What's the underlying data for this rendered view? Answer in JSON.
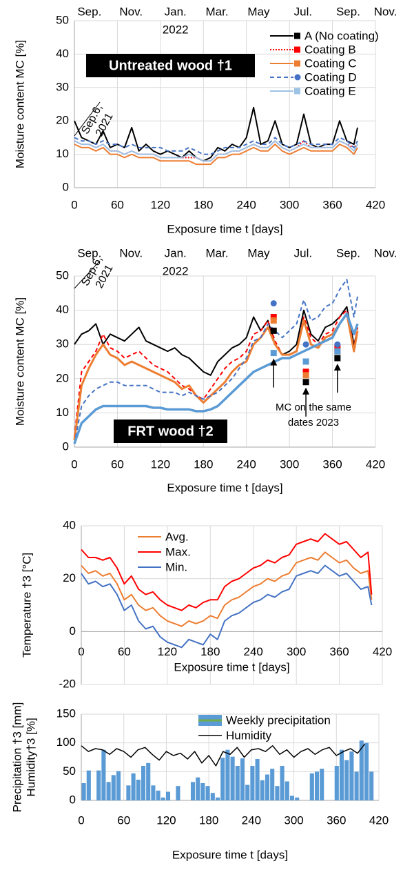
{
  "chart_data": [
    {
      "type": "line",
      "x_label": "Exposure time t [days]",
      "y_label": "Moisture content MC [%]",
      "label": "Untreated wood †1",
      "x2ticks": [
        {
          "value": 21,
          "label": "Sep."
        },
        {
          "value": 79,
          "label": "Nov."
        },
        {
          "value": 141,
          "label": "Jan."
        },
        {
          "value": 199,
          "label": "Mar."
        },
        {
          "value": 257,
          "label": "May"
        },
        {
          "value": 319,
          "label": "Jul."
        },
        {
          "value": 382,
          "label": "Sep."
        },
        {
          "value": 434,
          "label": "Nov."
        }
      ],
      "year_label": "2022",
      "start_note": [
        "Sep.6,",
        "2021"
      ],
      "xlim": [
        0,
        420
      ],
      "xticks": [
        0,
        60,
        120,
        180,
        240,
        300,
        360,
        420
      ],
      "ylim": [
        0,
        50
      ],
      "yticks": [
        0,
        10,
        20,
        30,
        40,
        50
      ],
      "grid": true,
      "x": [
        0,
        10,
        20,
        30,
        40,
        50,
        60,
        70,
        80,
        90,
        100,
        110,
        120,
        130,
        140,
        150,
        160,
        170,
        180,
        190,
        200,
        210,
        220,
        230,
        240,
        250,
        260,
        270,
        280,
        290,
        300,
        310,
        320,
        330,
        340,
        350,
        360,
        370,
        380,
        390,
        395
      ],
      "series": [
        {
          "name": "A (No coating)",
          "color": "#000000",
          "marker": "square",
          "values": [
            20,
            15,
            14,
            13,
            17,
            12,
            13,
            12,
            18,
            11,
            13,
            11,
            10,
            11,
            10,
            9,
            11,
            9,
            8,
            9,
            12,
            11,
            13,
            12,
            15,
            24,
            13,
            14,
            20,
            13,
            12,
            13,
            22,
            13,
            12,
            13,
            13,
            20,
            14,
            13,
            18
          ]
        },
        {
          "name": "Coating B",
          "color": "#ff0000",
          "marker": "square",
          "dash": "dotted",
          "values": [
            14,
            13,
            13,
            12,
            13,
            11,
            11,
            10,
            11,
            10,
            10,
            10,
            9,
            9,
            9,
            9,
            9,
            9,
            8,
            8,
            10,
            10,
            11,
            11,
            12,
            13,
            12,
            12,
            14,
            12,
            11,
            12,
            14,
            12,
            12,
            12,
            12,
            14,
            13,
            12,
            13
          ]
        },
        {
          "name": "Coating C",
          "color": "#ed7d31",
          "marker": "square",
          "values": [
            13,
            12,
            12,
            11,
            12,
            10,
            10,
            9,
            10,
            9,
            9,
            9,
            8,
            8,
            8,
            8,
            8,
            7,
            7,
            7,
            9,
            9,
            10,
            10,
            11,
            12,
            11,
            11,
            13,
            11,
            10,
            11,
            12,
            11,
            11,
            11,
            11,
            13,
            12,
            10,
            12
          ]
        },
        {
          "name": "Coating D",
          "color": "#4472c4",
          "marker": "circle",
          "dash": "dashed",
          "values": [
            15,
            14,
            14,
            13,
            14,
            13,
            13,
            12,
            13,
            12,
            12,
            12,
            12,
            11,
            11,
            11,
            12,
            11,
            10,
            10,
            11,
            12,
            12,
            12,
            13,
            14,
            13,
            13,
            15,
            13,
            12,
            13,
            14,
            13,
            13,
            13,
            13,
            15,
            14,
            12,
            14
          ]
        },
        {
          "name": "Coating E",
          "color": "#9dc3e6",
          "marker": "square",
          "values": [
            14,
            13,
            13,
            12,
            13,
            11,
            11,
            10,
            11,
            10,
            10,
            10,
            9,
            9,
            9,
            9,
            10,
            9,
            8,
            8,
            10,
            10,
            11,
            11,
            12,
            13,
            12,
            12,
            14,
            12,
            11,
            12,
            13,
            12,
            12,
            12,
            12,
            14,
            13,
            11,
            13
          ]
        }
      ]
    },
    {
      "type": "line",
      "x_label": "Exposure time t [days]",
      "y_label": "Moisture content MC [%]",
      "label": "FRT wood †2",
      "x2ticks": [
        {
          "value": 21,
          "label": "Sep."
        },
        {
          "value": 79,
          "label": "Nov."
        },
        {
          "value": 141,
          "label": "Jan."
        },
        {
          "value": 199,
          "label": "Mar."
        },
        {
          "value": 257,
          "label": "May"
        },
        {
          "value": 319,
          "label": "Jul."
        },
        {
          "value": 382,
          "label": "Sep."
        },
        {
          "value": 434,
          "label": "Nov."
        }
      ],
      "year_label": "2022",
      "start_note": [
        "Sep.6,",
        "2021"
      ],
      "note": [
        "MC on the same",
        "dates 2023"
      ],
      "xlim": [
        0,
        420
      ],
      "xticks": [
        0,
        60,
        120,
        180,
        240,
        300,
        360,
        420
      ],
      "ylim": [
        0,
        50
      ],
      "yticks": [
        0,
        10,
        20,
        30,
        40,
        50
      ],
      "grid": true,
      "x": [
        0,
        10,
        20,
        30,
        40,
        50,
        60,
        70,
        80,
        90,
        100,
        110,
        120,
        130,
        140,
        150,
        160,
        170,
        180,
        190,
        200,
        210,
        220,
        230,
        240,
        250,
        260,
        270,
        280,
        290,
        300,
        310,
        320,
        330,
        340,
        350,
        360,
        370,
        380,
        390,
        395
      ],
      "dates_2023_x": [
        278,
        323,
        367
      ],
      "series": [
        {
          "color": "#000000",
          "dates_2023_values": [
            34,
            19,
            26
          ],
          "values": [
            30,
            33,
            34,
            36,
            30,
            33,
            32,
            31,
            33,
            35,
            31,
            30,
            29,
            28,
            29,
            27,
            26,
            24,
            22,
            21,
            25,
            27,
            29,
            30,
            32,
            38,
            34,
            37,
            30,
            27,
            28,
            30,
            40,
            33,
            31,
            35,
            36,
            38,
            41,
            30,
            34
          ]
        },
        {
          "color": "#ff0000",
          "dash": "dashed",
          "dates_2023_values": [
            38,
            22,
            29
          ],
          "values": [
            3,
            22,
            25,
            28,
            33,
            29,
            28,
            26,
            27,
            28,
            26,
            24,
            23,
            22,
            20,
            18,
            17,
            15,
            14,
            17,
            20,
            23,
            25,
            26,
            28,
            33,
            34,
            37,
            31,
            27,
            27,
            28,
            38,
            32,
            30,
            33,
            34,
            38,
            40,
            29,
            35
          ]
        },
        {
          "color": "#ed7d31",
          "width": 3,
          "dates_2023_values": [
            37,
            21,
            28
          ],
          "values": [
            2,
            18,
            23,
            27,
            30,
            27,
            26,
            24,
            25,
            24,
            23,
            22,
            21,
            20,
            19,
            17,
            18,
            15,
            13,
            15,
            17,
            19,
            22,
            24,
            25,
            30,
            32,
            35,
            30,
            27,
            27,
            28,
            37,
            30,
            29,
            32,
            33,
            36,
            39,
            28,
            34
          ]
        },
        {
          "color": "#4472c4",
          "dash": "dashed",
          "marker": "circle",
          "dates_2023_values": [
            42,
            30,
            30
          ],
          "values": [
            1,
            12,
            15,
            17,
            18,
            19,
            19,
            18,
            18,
            18,
            18,
            17,
            16,
            16,
            16,
            15,
            16,
            15,
            14,
            15,
            16,
            18,
            20,
            23,
            26,
            31,
            32,
            36,
            34,
            32,
            34,
            36,
            43,
            37,
            38,
            41,
            42,
            46,
            49,
            38,
            44
          ]
        },
        {
          "color": "#5b9bd5",
          "width": 3.5,
          "dates_2023_values": [
            27.5,
            25,
            28
          ],
          "values": [
            1,
            7,
            9,
            11,
            12,
            12,
            12,
            12,
            12,
            12,
            12,
            11.5,
            11.5,
            11,
            11,
            11,
            11,
            10.5,
            10.5,
            11,
            12,
            14,
            16,
            18,
            20,
            22,
            23,
            24,
            25,
            26,
            26,
            27,
            28,
            29,
            30,
            31,
            32,
            36,
            39,
            33,
            36
          ]
        }
      ]
    },
    {
      "type": "line",
      "x_label": "Exposure time t  [days]",
      "y_label": "Temperature †3 [°C]",
      "xlim": [
        0,
        420
      ],
      "xticks": [
        0,
        60,
        120,
        180,
        240,
        300,
        360,
        420
      ],
      "ylim": [
        -20,
        40
      ],
      "yticks": [
        -20,
        0,
        20,
        40
      ],
      "grid": true,
      "x": [
        0,
        10,
        20,
        30,
        40,
        50,
        60,
        70,
        80,
        90,
        100,
        110,
        120,
        130,
        140,
        150,
        160,
        170,
        180,
        190,
        200,
        210,
        220,
        230,
        240,
        250,
        260,
        270,
        280,
        290,
        300,
        310,
        320,
        330,
        340,
        350,
        360,
        370,
        380,
        390,
        400,
        405
      ],
      "series": [
        {
          "name": "Avg.",
          "color": "#ed7d31",
          "values": [
            25,
            22,
            23,
            21,
            22,
            18,
            12,
            14,
            10,
            8,
            9,
            6,
            4,
            3,
            2,
            4,
            3,
            4,
            6,
            5,
            10,
            12,
            13,
            15,
            17,
            18,
            20,
            19,
            21,
            22,
            26,
            27,
            28,
            27,
            30,
            28,
            26,
            27,
            24,
            22,
            23,
            12
          ]
        },
        {
          "name": "Max.",
          "color": "#ff0000",
          "values": [
            31,
            28,
            28,
            27,
            28,
            24,
            18,
            21,
            16,
            14,
            15,
            12,
            10,
            9,
            8,
            10,
            9,
            11,
            12,
            12,
            17,
            19,
            20,
            22,
            24,
            25,
            27,
            26,
            28,
            29,
            33,
            34,
            35,
            34,
            37,
            35,
            33,
            34,
            31,
            28,
            30,
            14
          ]
        },
        {
          "name": "Min.",
          "color": "#4472c4",
          "values": [
            22,
            18,
            19,
            17,
            18,
            14,
            8,
            10,
            4,
            1,
            2,
            -2,
            -4,
            -5,
            -6,
            -3,
            -4,
            -5,
            -1,
            -3,
            4,
            6,
            7,
            9,
            11,
            12,
            14,
            13,
            15,
            16,
            21,
            22,
            23,
            22,
            25,
            23,
            21,
            22,
            19,
            16,
            17,
            10
          ]
        }
      ]
    },
    {
      "type": "combo",
      "x_label": "Exposure time t [days]",
      "y_label": "Precipitation †3 [mm]",
      "y_label_2": "Humidity†3 [%]",
      "xlim": [
        0,
        420
      ],
      "xticks": [
        0,
        60,
        120,
        180,
        240,
        300,
        360,
        420
      ],
      "ylim": [
        0,
        150
      ],
      "yticks": [
        0,
        50,
        100,
        150
      ],
      "grid": true,
      "series": [
        {
          "name": "Weekly precipitation",
          "kind": "bar",
          "color": "#5b9bd5",
          "x": [
            3.5,
            10.5,
            17.5,
            24.5,
            31.5,
            38.5,
            45.5,
            52.5,
            59.5,
            66.5,
            73.5,
            80.5,
            87.5,
            94.5,
            101.5,
            108.5,
            115.5,
            122.5,
            129.5,
            136.5,
            143.5,
            150.5,
            157.5,
            164.5,
            171.5,
            178.5,
            185.5,
            192.5,
            199.5,
            206.5,
            213.5,
            220.5,
            227.5,
            234.5,
            241.5,
            248.5,
            255.5,
            262.5,
            269.5,
            276.5,
            283.5,
            290.5,
            297.5,
            304.5,
            311.5,
            318.5,
            325.5,
            332.5,
            339.5,
            346.5,
            353.5,
            360.5,
            367.5,
            374.5,
            381.5,
            388.5,
            395.5,
            402.5,
            409.5
          ],
          "values": [
            30,
            52,
            0,
            52,
            88,
            32,
            44,
            51,
            0,
            26,
            47,
            36,
            60,
            65,
            26,
            17,
            5,
            15,
            0,
            25,
            0,
            0,
            32,
            40,
            30,
            25,
            13,
            5,
            74,
            88,
            76,
            60,
            73,
            27,
            60,
            72,
            35,
            45,
            55,
            25,
            60,
            33,
            8,
            5,
            0,
            0,
            47,
            50,
            55,
            0,
            0,
            60,
            88,
            70,
            85,
            50,
            104,
            100,
            50
          ]
        },
        {
          "name": "Humidity",
          "kind": "line",
          "color": "#000000",
          "width": 1.5,
          "x": [
            0,
            10,
            20,
            30,
            40,
            50,
            60,
            70,
            80,
            90,
            100,
            110,
            120,
            130,
            140,
            150,
            160,
            170,
            180,
            190,
            200,
            210,
            220,
            230,
            240,
            250,
            260,
            270,
            280,
            290,
            300,
            310,
            320,
            330,
            340,
            350,
            360,
            370,
            380,
            390,
            400
          ],
          "values": [
            95,
            85,
            90,
            88,
            80,
            90,
            85,
            75,
            88,
            92,
            80,
            70,
            85,
            78,
            82,
            72,
            85,
            65,
            78,
            60,
            85,
            80,
            92,
            75,
            88,
            90,
            85,
            95,
            80,
            88,
            75,
            85,
            90,
            80,
            88,
            92,
            78,
            85,
            90,
            82,
            98
          ]
        }
      ]
    }
  ]
}
